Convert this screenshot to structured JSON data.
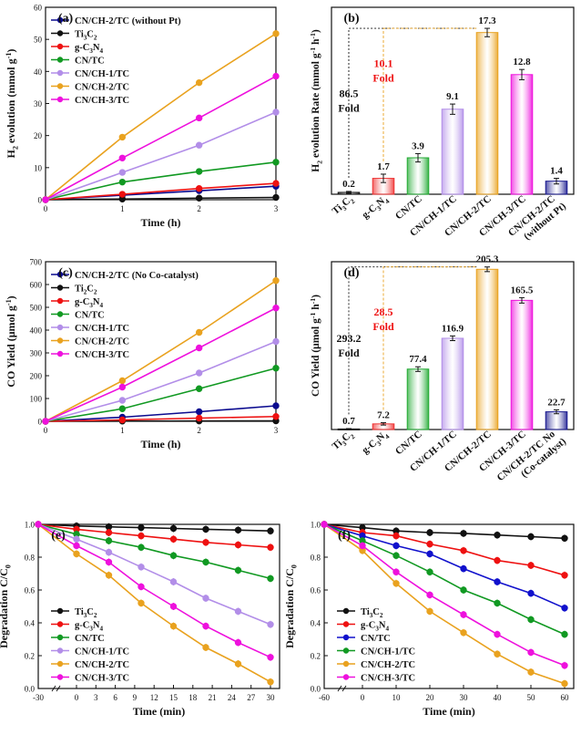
{
  "chart_data": [
    {
      "panel": "(a)",
      "type": "line",
      "xlabel": "Time (h)",
      "ylabel": "H2 evolution (mmol g-1)",
      "ylabel_parts": [
        "H",
        "2",
        " evolution (mmol g",
        "-1",
        ")"
      ],
      "xlim": [
        0,
        3
      ],
      "ylim": [
        0,
        60
      ],
      "xticks": [
        "0",
        "1",
        "2",
        "3"
      ],
      "yticks": [
        "0",
        "10",
        "20",
        "30",
        "40",
        "50",
        "60"
      ],
      "legend": "top-left",
      "x": [
        0,
        1,
        2,
        3
      ],
      "series": [
        {
          "name": "CN/CH-2/TC (without Pt)",
          "color": "#0b0b8f",
          "marker": "circle",
          "values": [
            0,
            1.4,
            2.8,
            4.2
          ]
        },
        {
          "name": "Ti3C2",
          "color": "#111111",
          "marker": "circle",
          "values": [
            0,
            0.2,
            0.5,
            0.7
          ]
        },
        {
          "name": "g-C3N4",
          "color": "#ee1111",
          "marker": "circle",
          "values": [
            0,
            1.7,
            3.5,
            5.1
          ]
        },
        {
          "name": "CN/TC",
          "color": "#119922",
          "marker": "circle",
          "values": [
            0,
            5.5,
            8.8,
            11.7
          ]
        },
        {
          "name": "CN/CH-1/TC",
          "color": "#b28ee8",
          "marker": "circle",
          "values": [
            0,
            8.5,
            17.0,
            27.3
          ]
        },
        {
          "name": "CN/CH-2/TC",
          "color": "#e9a21f",
          "marker": "circle",
          "values": [
            0,
            19.5,
            36.5,
            51.8
          ]
        },
        {
          "name": "CN/CH-3/TC",
          "color": "#ee11dd",
          "marker": "circle",
          "values": [
            0,
            13.0,
            25.5,
            38.5
          ]
        }
      ],
      "legend_parts": [
        [
          "CN/CH-2/TC (without Pt)"
        ],
        [
          "Ti",
          "3",
          "C",
          "2"
        ],
        [
          "g-C",
          "3",
          "N",
          "4"
        ],
        [
          "CN/TC"
        ],
        [
          "CN/CH-1/TC"
        ],
        [
          "CN/CH-2/TC"
        ],
        [
          "CN/CH-3/TC"
        ]
      ]
    },
    {
      "panel": "(b)",
      "type": "bar",
      "ylabel": "H2 evolution Rate (mmol g-1 h-1)",
      "ylabel_parts": [
        "H",
        "2",
        " evolution Rate (mmol g",
        "-1",
        " h",
        "-1",
        ")"
      ],
      "ylim": [
        0,
        20
      ],
      "categories": [
        "Ti3C2",
        "g-C3N4",
        "CN/TC",
        "CN/CH-1/TC",
        "CN/CH-2/TC",
        "CN/CH-3/TC",
        "CN/CH-2/TC (without Pt)"
      ],
      "category_parts": [
        [
          "Ti",
          "3",
          "C",
          "2"
        ],
        [
          "g-C",
          "3",
          "N",
          "4"
        ],
        [
          "CN/TC"
        ],
        [
          "CN/CH-1/TC"
        ],
        [
          "CN/CH-2/TC"
        ],
        [
          "CN/CH-3/TC"
        ],
        [
          "CN/CH-2/TC",
          "(without Pt)"
        ]
      ],
      "values": [
        0.2,
        1.7,
        3.9,
        9.1,
        17.3,
        12.8,
        1.4
      ],
      "value_labels": [
        "0.2",
        "1.7",
        "3.9",
        "9.1",
        "17.3",
        "12.8",
        "1.4"
      ],
      "errors": [
        0.1,
        0.45,
        0.45,
        0.55,
        0.45,
        0.55,
        0.3
      ],
      "colors": [
        "#111111",
        "#ee3333",
        "#22aa33",
        "#b28ee8",
        "#e9a21f",
        "#ee11dd",
        "#1a1a8f"
      ],
      "annotations": [
        {
          "text": "86.5",
          "color": "#111111"
        },
        {
          "text": "Fold",
          "color": "#111111"
        },
        {
          "text": "10.1",
          "color": "#ee1111"
        },
        {
          "text": "Fold",
          "color": "#ee1111"
        }
      ]
    },
    {
      "panel": "(c)",
      "type": "line",
      "xlabel": "Time (h)",
      "ylabel": "CO Yield (μmol g-1)",
      "ylabel_parts": [
        "CO Yield (μmol g",
        "-1",
        ")"
      ],
      "xlim": [
        0,
        3
      ],
      "ylim": [
        0,
        700
      ],
      "xticks": [
        "0",
        "1",
        "2",
        "3"
      ],
      "yticks": [
        "0",
        "100",
        "200",
        "300",
        "400",
        "500",
        "600",
        "700"
      ],
      "legend": "top-left",
      "x": [
        0,
        1,
        2,
        3
      ],
      "series": [
        {
          "name": "CN/CH-2/TC (No Co-catalyst)",
          "color": "#0b0b8f",
          "marker": "circle",
          "values": [
            0,
            18,
            42,
            68
          ]
        },
        {
          "name": "Ti3C2",
          "color": "#111111",
          "marker": "circle",
          "values": [
            0,
            1,
            1.5,
            2
          ]
        },
        {
          "name": "g-C3N4",
          "color": "#ee1111",
          "marker": "circle",
          "values": [
            0,
            6,
            14,
            21
          ]
        },
        {
          "name": "CN/TC",
          "color": "#119922",
          "marker": "circle",
          "values": [
            0,
            55,
            143,
            233
          ]
        },
        {
          "name": "CN/CH-1/TC",
          "color": "#b28ee8",
          "marker": "circle",
          "values": [
            0,
            92,
            212,
            350
          ]
        },
        {
          "name": "CN/CH-2/TC",
          "color": "#e9a21f",
          "marker": "circle",
          "values": [
            0,
            178,
            390,
            617
          ]
        },
        {
          "name": "CN/CH-3/TC",
          "color": "#ee11dd",
          "marker": "circle",
          "values": [
            0,
            150,
            322,
            497
          ]
        }
      ],
      "legend_parts": [
        [
          "CN/CH-2/TC (No Co-catalyst)"
        ],
        [
          "Ti",
          "2",
          "C",
          "2"
        ],
        [
          "g-C",
          "3",
          "N",
          "4"
        ],
        [
          "CN/TC"
        ],
        [
          "CN/CH-1/TC"
        ],
        [
          "CN/CH-2/TC"
        ],
        [
          "CN/CH-3/TC"
        ]
      ]
    },
    {
      "panel": "(d)",
      "type": "bar",
      "ylabel": "CO Yield (μmol g-1 h-1)",
      "ylabel_parts": [
        "CO Yield (μmol g",
        "-1",
        " h",
        "-1",
        ")"
      ],
      "ylim": [
        0,
        215
      ],
      "categories": [
        "Ti3C2",
        "g-C3N4",
        "CN/TC",
        "CN/CH-1/TC",
        "CN/CH-2/TC",
        "CN/CH-3/TC",
        "CN/CH-2/TC No (Co-catalyst)"
      ],
      "category_parts": [
        [
          "Ti",
          "3",
          "C",
          "2"
        ],
        [
          "g-C",
          "3",
          "N",
          "4"
        ],
        [
          "CN/TC"
        ],
        [
          "CN/CH-1/TC"
        ],
        [
          "CN/CH-2/TC"
        ],
        [
          "CN/CH-3/TC"
        ],
        [
          "CN/CH-2/TC No",
          "(Co-catalyst)"
        ]
      ],
      "values": [
        0.7,
        7.2,
        77.4,
        116.9,
        205.3,
        165.5,
        22.7
      ],
      "value_labels": [
        "0.7",
        "7.2",
        "77.4",
        "116.9",
        "205.3",
        "165.5",
        "22.7"
      ],
      "errors": [
        0.5,
        1.5,
        3.0,
        3.0,
        3.0,
        3.5,
        2.5
      ],
      "colors": [
        "#111111",
        "#ee3333",
        "#22aa33",
        "#b28ee8",
        "#e9a21f",
        "#ee11dd",
        "#1a1a8f"
      ],
      "annotations": [
        {
          "text": "293.2",
          "color": "#111111"
        },
        {
          "text": "Fold",
          "color": "#111111"
        },
        {
          "text": "28.5",
          "color": "#ee1111"
        },
        {
          "text": "Fold",
          "color": "#ee1111"
        }
      ]
    },
    {
      "panel": "(e)",
      "type": "line",
      "xlabel": "Time (min)",
      "ylabel": "Degradation C/C0",
      "ylabel_parts": [
        "Degradation C/C",
        "0",
        ""
      ],
      "xlim": [
        -30,
        30
      ],
      "ylim": [
        0,
        1.0
      ],
      "xticks": [
        "-30",
        "0",
        "3",
        "6",
        "9",
        "12",
        "15",
        "18",
        "21",
        "24",
        "27",
        "30"
      ],
      "yticks": [
        "0.0",
        "0.2",
        "0.4",
        "0.6",
        "0.8",
        "1.0"
      ],
      "legend": "bottom-left",
      "x": [
        -30,
        0,
        5,
        10,
        15,
        20,
        25,
        30
      ],
      "series": [
        {
          "name": "Ti3C2",
          "color": "#111111",
          "marker": "circle",
          "values": [
            1.0,
            0.99,
            0.985,
            0.98,
            0.975,
            0.97,
            0.965,
            0.96
          ]
        },
        {
          "name": "g-C3N4",
          "color": "#ee1111",
          "marker": "circle",
          "values": [
            1.0,
            0.97,
            0.95,
            0.93,
            0.91,
            0.89,
            0.875,
            0.86
          ]
        },
        {
          "name": "CN/TC",
          "color": "#119922",
          "marker": "circle",
          "values": [
            1.0,
            0.94,
            0.9,
            0.86,
            0.81,
            0.77,
            0.72,
            0.67
          ]
        },
        {
          "name": "CN/CH-1/TC",
          "color": "#b28ee8",
          "marker": "circle",
          "values": [
            1.0,
            0.91,
            0.83,
            0.74,
            0.65,
            0.55,
            0.47,
            0.39
          ]
        },
        {
          "name": "CN/CH-2/TC",
          "color": "#e9a21f",
          "marker": "circle",
          "values": [
            1.0,
            0.82,
            0.69,
            0.52,
            0.38,
            0.25,
            0.15,
            0.04
          ]
        },
        {
          "name": "CN/CH-3/TC",
          "color": "#ee11dd",
          "marker": "circle",
          "values": [
            1.0,
            0.87,
            0.77,
            0.62,
            0.5,
            0.38,
            0.28,
            0.19
          ]
        }
      ],
      "legend_parts": [
        [
          "Ti",
          "3",
          "C",
          "2"
        ],
        [
          "g-C",
          "3",
          "N",
          "4"
        ],
        [
          "CN/TC"
        ],
        [
          "CN/CH-1/TC"
        ],
        [
          "CN/CH-2/TC"
        ],
        [
          "CN/CH-3/TC"
        ]
      ]
    },
    {
      "panel": "(f)",
      "type": "line",
      "xlabel": "Time (min)",
      "ylabel": "Degradation C/C0",
      "ylabel_parts": [
        "Degradation C/C",
        "0",
        ""
      ],
      "xlim": [
        -60,
        60
      ],
      "ylim": [
        0,
        1.0
      ],
      "xticks": [
        "-60",
        "0",
        "10",
        "20",
        "30",
        "40",
        "50",
        "60"
      ],
      "yticks": [
        "0.0",
        "0.2",
        "0.4",
        "0.6",
        "0.8",
        "1.0"
      ],
      "legend": "bottom-left",
      "x": [
        -60,
        0,
        10,
        20,
        30,
        40,
        50,
        60
      ],
      "series": [
        {
          "name": "Ti3C2",
          "color": "#111111",
          "marker": "circle",
          "values": [
            1.0,
            0.98,
            0.96,
            0.95,
            0.945,
            0.935,
            0.925,
            0.915
          ]
        },
        {
          "name": "g-C3N4",
          "color": "#ee1111",
          "marker": "circle",
          "values": [
            1.0,
            0.95,
            0.93,
            0.88,
            0.84,
            0.78,
            0.75,
            0.69
          ]
        },
        {
          "name": "CN/TC",
          "color": "#1111cc",
          "marker": "circle",
          "values": [
            1.0,
            0.93,
            0.87,
            0.82,
            0.73,
            0.65,
            0.58,
            0.49
          ]
        },
        {
          "name": "CN/CH-1/TC",
          "color": "#119922",
          "marker": "circle",
          "values": [
            1.0,
            0.9,
            0.81,
            0.71,
            0.6,
            0.52,
            0.42,
            0.33
          ]
        },
        {
          "name": "CN/CH-2/TC",
          "color": "#e9a21f",
          "marker": "circle",
          "values": [
            1.0,
            0.84,
            0.64,
            0.47,
            0.34,
            0.21,
            0.1,
            0.03
          ]
        },
        {
          "name": "CN/CH-3/TC",
          "color": "#ee11dd",
          "marker": "circle",
          "values": [
            1.0,
            0.87,
            0.71,
            0.57,
            0.45,
            0.33,
            0.22,
            0.14
          ]
        }
      ],
      "legend_parts": [
        [
          "Ti",
          "3",
          "C",
          "2"
        ],
        [
          "g-C",
          "3",
          "N",
          "4"
        ],
        [
          "CN/TC"
        ],
        [
          "CN/CH-1/TC"
        ],
        [
          "CN/CH-2/TC"
        ],
        [
          "CN/CH-3/TC"
        ]
      ]
    }
  ]
}
